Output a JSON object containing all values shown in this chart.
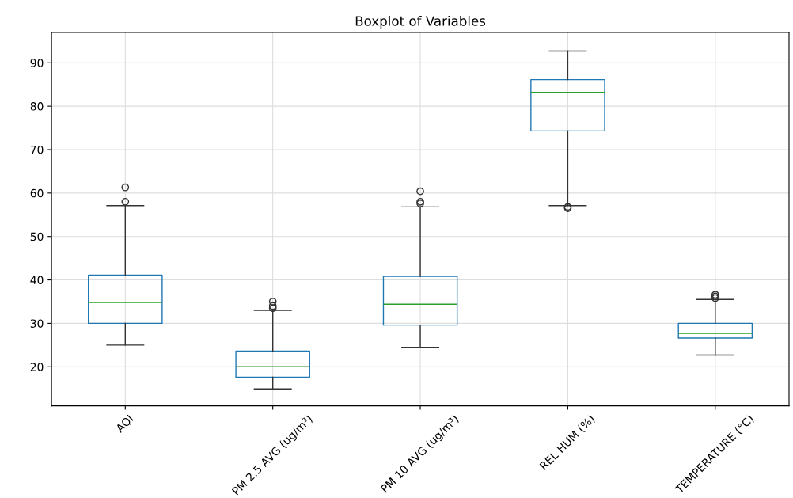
{
  "chart_data": {
    "type": "box",
    "title": "Boxplot of Variables",
    "categories": [
      "AQI",
      "PM 2.5 AVG (ug/m³)",
      "PM 10 AVG (ug/m³)",
      "REL HUM (%)",
      "TEMPERATURE (°C)"
    ],
    "series": [
      {
        "color": "#1f77b4",
        "boxes": [
          {
            "low": 25,
            "q1": 30,
            "median": 34.8,
            "q3": 41.1,
            "high": 57.1,
            "outliers": [
              58,
              61.3
            ]
          },
          {
            "low": 14.9,
            "q1": 17.6,
            "median": 20,
            "q3": 23.6,
            "high": 33,
            "outliers": [
              33.5,
              34,
              35
            ]
          },
          {
            "low": 24.5,
            "q1": 29.6,
            "median": 34.4,
            "q3": 40.8,
            "high": 56.8,
            "outliers": [
              57.6,
              58,
              60.4
            ]
          },
          {
            "low": 57.1,
            "q1": 74.3,
            "median": 83.2,
            "q3": 86.1,
            "high": 92.7,
            "outliers": [
              56.5,
              56.8
            ]
          },
          {
            "low": 22.7,
            "q1": 26.6,
            "median": 27.7,
            "q3": 30,
            "high": 35.5,
            "outliers": [
              35.8,
              36.2,
              36.6
            ]
          }
        ]
      }
    ],
    "ylim": [
      11,
      97
    ],
    "yticks": [
      20,
      30,
      40,
      50,
      60,
      70,
      80,
      90
    ],
    "grid": true
  }
}
